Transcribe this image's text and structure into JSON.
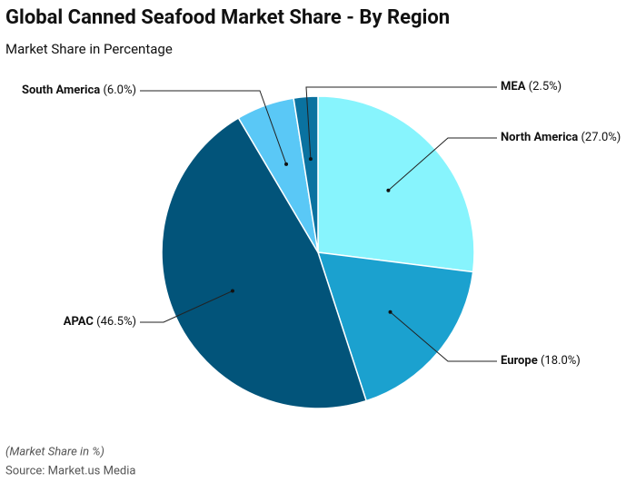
{
  "chart_data": {
    "type": "pie",
    "title": "Global Canned Seafood Market Share - By Region",
    "subtitle": "Market Share in Percentage",
    "footnote": "(Market Share in %)",
    "source": "Source: Market.us Media",
    "categories": [
      "North America",
      "Europe",
      "APAC",
      "South America",
      "MEA"
    ],
    "values": [
      27.0,
      18.0,
      46.5,
      6.0,
      2.5
    ],
    "value_labels": [
      "(27.0%)",
      "(18.0%)",
      "(46.5%)",
      "(6.0%)",
      "(2.5%)"
    ],
    "colors": [
      "#87f4fd",
      "#1ba1cf",
      "#02547a",
      "#5ac8f6",
      "#0a72a0"
    ]
  }
}
